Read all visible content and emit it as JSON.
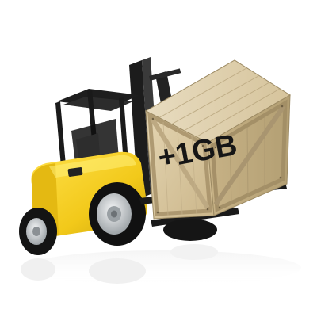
{
  "scene": {
    "crate_label": "+1GB",
    "colors": {
      "forklift_body": "#f2cd1e",
      "forklift_shadow": "#c9a10c",
      "frame": "#1e1e1e",
      "tire": "#141414",
      "rim": "#cfd3d6",
      "crate_wood": "#d8c69e",
      "crate_dark": "#b9a57a",
      "background": "#ffffff"
    },
    "icons": [
      "forklift-illustration",
      "wooden-crate"
    ]
  }
}
